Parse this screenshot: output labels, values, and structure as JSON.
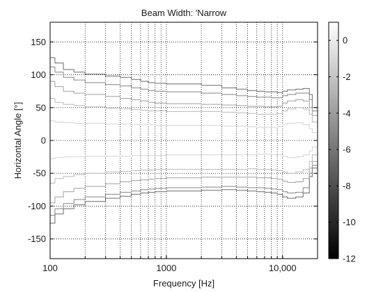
{
  "chart_data": {
    "type": "contour",
    "title": "Beam Width: 'Narrow",
    "xlabel": "Frequency [Hz]",
    "ylabel": "Horizontal Angle [°]",
    "x_scale": "log",
    "xlim": [
      100,
      20000
    ],
    "ylim": [
      -180,
      180
    ],
    "x_ticks": [
      100,
      1000,
      10000
    ],
    "x_tick_labels": [
      "100",
      "1000",
      "10,000"
    ],
    "y_ticks": [
      150,
      100,
      50,
      0,
      -50,
      -100,
      -150
    ],
    "y_tick_labels": [
      "150",
      "100",
      "50",
      "0",
      "-50",
      "-100",
      "-150"
    ],
    "grid": true,
    "colorbar": {
      "range": [
        -12,
        1
      ],
      "ticks": [
        0,
        -2,
        -4,
        -6,
        -8,
        -10,
        -12
      ],
      "tick_labels": [
        "0",
        "-2",
        "-4",
        "-6",
        "-8",
        "-10",
        "-12"
      ],
      "colormap": "gray"
    },
    "x": [
      100,
      110,
      130,
      160,
      200,
      300,
      400,
      500,
      600,
      700,
      800,
      1000,
      2000,
      3000,
      4000,
      5000,
      6000,
      7000,
      8000,
      9000,
      10000,
      11000,
      13000,
      15000,
      17000,
      18000,
      20000
    ],
    "series": [
      {
        "level": -6,
        "upper": [
          126,
          118,
          108,
          104,
          101,
          98,
          96,
          93,
          90,
          88,
          87,
          86,
          84,
          80,
          78,
          76,
          75,
          74,
          74,
          73,
          75,
          77,
          78,
          79,
          70,
          50,
          25
        ],
        "lower": [
          -126,
          -112,
          -104,
          -98,
          -93,
          -88,
          -85,
          -82,
          -80,
          -79,
          -78,
          -77,
          -76,
          -75,
          -76,
          -77,
          -78,
          -79,
          -80,
          -82,
          -86,
          -88,
          -86,
          -80,
          -55,
          -42,
          -25
        ]
      },
      {
        "level": -4.5,
        "upper": [
          112,
          104,
          96,
          92,
          88,
          85,
          83,
          80,
          78,
          76,
          75,
          74,
          72,
          70,
          68,
          67,
          66,
          66,
          65,
          65,
          68,
          70,
          72,
          72,
          62,
          45,
          20
        ],
        "lower": [
          -114,
          -104,
          -96,
          -90,
          -86,
          -82,
          -79,
          -77,
          -75,
          -74,
          -73,
          -72,
          -71,
          -70,
          -71,
          -72,
          -72,
          -73,
          -74,
          -75,
          -78,
          -80,
          -79,
          -72,
          -50,
          -38,
          -20
        ]
      },
      {
        "level": -3,
        "upper": [
          90,
          82,
          75,
          72,
          70,
          67,
          64,
          62,
          60,
          58,
          57,
          56,
          55,
          54,
          53,
          52,
          52,
          51,
          51,
          52,
          57,
          60,
          62,
          60,
          50,
          38,
          15
        ],
        "lower": [
          -95,
          -86,
          -78,
          -73,
          -70,
          -66,
          -63,
          -61,
          -60,
          -59,
          -58,
          -57,
          -56,
          -56,
          -56,
          -56,
          -57,
          -57,
          -58,
          -59,
          -62,
          -64,
          -63,
          -58,
          -42,
          -32,
          -15
        ]
      },
      {
        "level": -1.5,
        "upper": [
          64,
          58,
          55,
          53,
          51,
          49,
          48,
          47,
          46,
          45,
          45,
          44,
          44,
          43,
          42,
          41,
          40,
          40,
          40,
          41,
          45,
          48,
          50,
          48,
          40,
          28,
          10
        ],
        "lower": [
          -65,
          -58,
          -55,
          -52,
          -50,
          -48,
          -47,
          -46,
          -45,
          -45,
          -44,
          -44,
          -44,
          -44,
          -44,
          -43,
          -44,
          -44,
          -45,
          -46,
          -48,
          -50,
          -48,
          -44,
          -32,
          -22,
          -10
        ]
      },
      {
        "level": 0,
        "upper": [
          30,
          28,
          27,
          26,
          26,
          25,
          25,
          24,
          24,
          24,
          23,
          23,
          23,
          22,
          22,
          21,
          20,
          20,
          20,
          21,
          24,
          26,
          27,
          24,
          18,
          12,
          4
        ],
        "lower": [
          -28,
          -26,
          -25,
          -25,
          -24,
          -24,
          -24,
          -23,
          -23,
          -23,
          -23,
          -22,
          -22,
          -22,
          -22,
          -22,
          -21,
          -21,
          -22,
          -22,
          -24,
          -26,
          -25,
          -22,
          -16,
          -10,
          -4
        ]
      }
    ]
  }
}
